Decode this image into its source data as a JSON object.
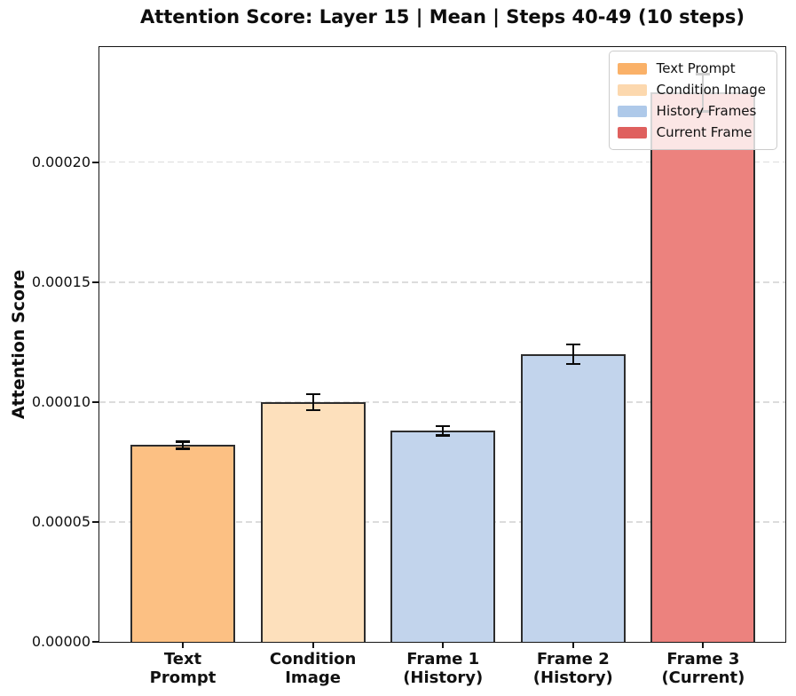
{
  "title": "Attention Score: Layer 15 | Mean | Steps 40-49 (10 steps)",
  "chart_data": {
    "type": "bar",
    "title": "Attention Score: Layer 15 | Mean | Steps 40-49 (10 steps)",
    "xlabel": "",
    "ylabel": "Attention Score",
    "ylim": [
      0,
      0.000248
    ],
    "grid": "horizontal-dashed",
    "legend_position": "upper-right",
    "categories": [
      "Text Prompt",
      "Condition Image",
      "Frame 1 (History)",
      "Frame 2 (History)",
      "Frame 3 (Current)"
    ],
    "category_label_lines": [
      [
        "Text",
        "Prompt"
      ],
      [
        "Condition",
        "Image"
      ],
      [
        "Frame 1",
        "(History)"
      ],
      [
        "Frame 2",
        "(History)"
      ],
      [
        "Frame 3",
        "(Current)"
      ]
    ],
    "values": [
      8.2e-05,
      0.0001,
      8.8e-05,
      0.00012,
      0.000229
    ],
    "errors": [
      1.5e-06,
      3.3e-06,
      1.9e-06,
      4.1e-06,
      7.8e-06
    ],
    "bar_colors": [
      "#fcc083",
      "#fde0bc",
      "#c2d4ec",
      "#c2d4ec",
      "#ec827e"
    ],
    "bar_edge_color": "#2d2d2d",
    "error_bar_color": "#0a0a0a",
    "gridline_color": "#dcdcdc",
    "yticks": [
      {
        "value": 0.0,
        "label": "0.00000"
      },
      {
        "value": 5e-05,
        "label": "0.00005"
      },
      {
        "value": 0.0001,
        "label": "0.00010"
      },
      {
        "value": 0.00015,
        "label": "0.00015"
      },
      {
        "value": 0.0002,
        "label": "0.00020"
      }
    ],
    "legend": [
      {
        "label": "Text Prompt",
        "color": "#fab168"
      },
      {
        "label": "Condition Image",
        "color": "#fcd8ae"
      },
      {
        "label": "History Frames",
        "color": "#aec9e9"
      },
      {
        "label": "Current Frame",
        "color": "#df605e"
      }
    ]
  }
}
